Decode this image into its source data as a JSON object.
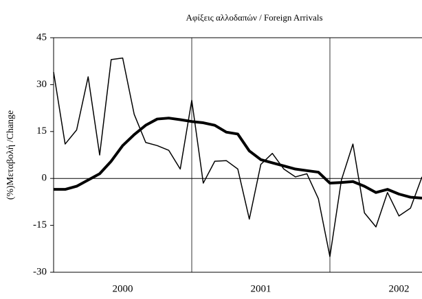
{
  "chart_data": {
    "type": "line",
    "title": "Αφίξεις αλλοδαπών  / Foreign Arrivals",
    "y_label": "(%)Μεταβολή /Change",
    "x": [
      0,
      1,
      2,
      3,
      4,
      5,
      6,
      7,
      8,
      9,
      10,
      11,
      12,
      13,
      14,
      15,
      16,
      17,
      18,
      19,
      20,
      21,
      22,
      23,
      24,
      25,
      26,
      27,
      28,
      29,
      30,
      31,
      32
    ],
    "series": [
      {
        "color": "#000000",
        "width": 1.5,
        "values": [
          34,
          11,
          15.5,
          32.5,
          7.5,
          38,
          38.5,
          20.5,
          11.5,
          10.5,
          9,
          3,
          25,
          -1.5,
          5.5,
          5.7,
          3,
          -13,
          4.5,
          8,
          3,
          0.5,
          1.5,
          -6.5,
          -25,
          -0.5,
          11,
          -11,
          -15.5,
          -4.5,
          -12,
          -9.5,
          0.5
        ]
      },
      {
        "color": "#000000",
        "width": 4,
        "values": [
          -3.5,
          -3.5,
          -2.5,
          -0.5,
          1.5,
          5.5,
          10.5,
          14,
          17,
          19,
          19.3,
          18.8,
          18.2,
          17.8,
          17,
          14.8,
          14.2,
          8.8,
          6,
          5,
          4,
          3,
          2.5,
          2,
          -1.5,
          -1.3,
          -1,
          -2.5,
          -4.5,
          -3.5,
          -5,
          -6,
          -6.3
        ]
      }
    ],
    "xlim": [
      0,
      32
    ],
    "xticks": [
      {
        "value": 6,
        "label": "2000"
      },
      {
        "value": 18,
        "label": "2001"
      },
      {
        "value": 30,
        "label": "2002"
      }
    ],
    "x_dividers": [
      12,
      24
    ],
    "ylim": [
      -30,
      45
    ],
    "yticks": [
      -30,
      -15,
      0,
      15,
      30,
      45
    ]
  }
}
